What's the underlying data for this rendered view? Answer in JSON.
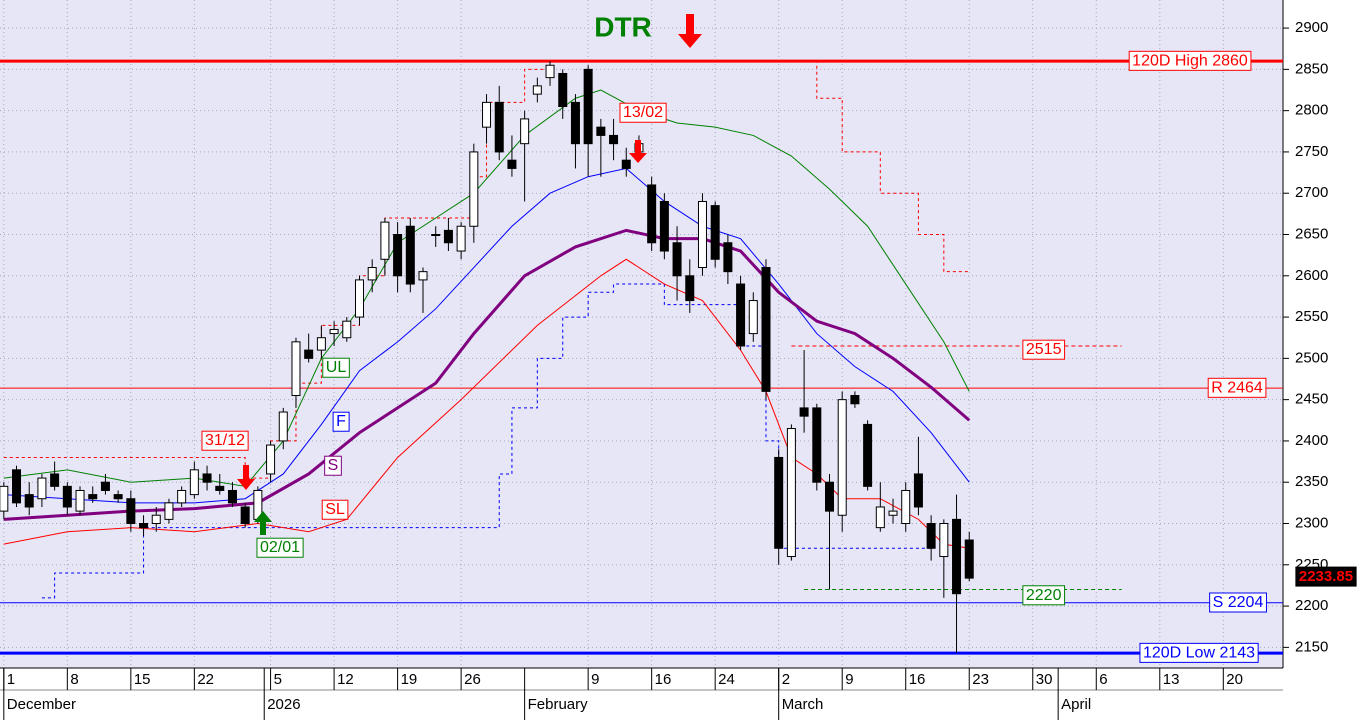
{
  "chart_data": {
    "type": "candlestick",
    "xlim": [
      -0.3,
      100.7
    ],
    "ylim": [
      2125,
      2934
    ],
    "yticks": [
      2150,
      2200,
      2250,
      2300,
      2350,
      2400,
      2450,
      2500,
      2550,
      2600,
      2650,
      2700,
      2750,
      2800,
      2850,
      2900
    ],
    "xticks": [
      {
        "value": 0,
        "label": "1"
      },
      {
        "value": 5,
        "label": "8"
      },
      {
        "value": 10,
        "label": "15"
      },
      {
        "value": 15,
        "label": "22"
      },
      {
        "value": 21,
        "label": "5"
      },
      {
        "value": 26,
        "label": "12"
      },
      {
        "value": 31,
        "label": "19"
      },
      {
        "value": 36,
        "label": "26"
      },
      {
        "value": 46,
        "label": "9"
      },
      {
        "value": 51,
        "label": "16"
      },
      {
        "value": 56,
        "label": "24"
      },
      {
        "value": 61,
        "label": "2"
      },
      {
        "value": 66,
        "label": "9"
      },
      {
        "value": 71,
        "label": "16"
      },
      {
        "value": 76,
        "label": "23"
      },
      {
        "value": 81,
        "label": "30"
      },
      {
        "value": 86,
        "label": "6"
      },
      {
        "value": 91,
        "label": "13"
      },
      {
        "value": 96,
        "label": "20"
      }
    ],
    "months": [
      {
        "value": 0,
        "label": "December"
      },
      {
        "value": 20.5,
        "label": "2026"
      },
      {
        "value": 41,
        "label": "February"
      },
      {
        "value": 61,
        "label": "March"
      },
      {
        "value": 83,
        "label": "April"
      }
    ],
    "grid": true,
    "open": [
      2315,
      2365,
      2335,
      2330,
      2360,
      2345,
      2315,
      2335,
      2350,
      2335,
      2330,
      2300,
      2300,
      2305,
      2325,
      2335,
      2360,
      2345,
      2340,
      2320,
      2305,
      2360,
      2400,
      2455,
      2510,
      2510,
      2530,
      2525,
      2550,
      2595,
      2620,
      2650,
      2660,
      2595,
      2650,
      2655,
      2630,
      2660,
      2780,
      2810,
      2740,
      2760,
      2820,
      2840,
      2845,
      2810,
      2850,
      2780,
      2770,
      2740,
      2750,
      2710,
      2690,
      2640,
      2600,
      2610,
      2685,
      2640,
      2590,
      2530,
      2610,
      2380,
      2260,
      2440,
      2440,
      2350,
      2310,
      2455,
      2420,
      2295,
      2310,
      2300,
      2360,
      2300,
      2260,
      2305,
      2280
    ],
    "high": [
      2350,
      2370,
      2350,
      2360,
      2375,
      2350,
      2345,
      2345,
      2360,
      2340,
      2340,
      2310,
      2320,
      2330,
      2345,
      2375,
      2370,
      2360,
      2350,
      2325,
      2345,
      2400,
      2440,
      2525,
      2530,
      2540,
      2545,
      2550,
      2600,
      2620,
      2670,
      2665,
      2670,
      2610,
      2660,
      2670,
      2665,
      2760,
      2820,
      2830,
      2770,
      2800,
      2840,
      2860,
      2850,
      2820,
      2855,
      2790,
      2790,
      2755,
      2770,
      2720,
      2700,
      2660,
      2620,
      2700,
      2690,
      2650,
      2600,
      2580,
      2620,
      2390,
      2420,
      2510,
      2445,
      2360,
      2460,
      2460,
      2425,
      2350,
      2330,
      2350,
      2405,
      2310,
      2305,
      2335,
      2290
    ],
    "low": [
      2305,
      2320,
      2310,
      2320,
      2340,
      2310,
      2310,
      2325,
      2335,
      2325,
      2290,
      2285,
      2290,
      2300,
      2320,
      2330,
      2340,
      2335,
      2320,
      2295,
      2300,
      2350,
      2390,
      2440,
      2495,
      2500,
      2515,
      2520,
      2540,
      2580,
      2600,
      2580,
      2580,
      2555,
      2635,
      2630,
      2620,
      2640,
      2760,
      2740,
      2720,
      2690,
      2810,
      2830,
      2790,
      2730,
      2720,
      2720,
      2740,
      2720,
      2745,
      2630,
      2620,
      2570,
      2555,
      2600,
      2610,
      2590,
      2510,
      2520,
      2450,
      2250,
      2255,
      2410,
      2340,
      2220,
      2290,
      2440,
      2340,
      2290,
      2300,
      2290,
      2310,
      2255,
      2210,
      2143,
      2230
    ],
    "close": [
      2345,
      2325,
      2320,
      2355,
      2345,
      2320,
      2340,
      2330,
      2340,
      2330,
      2300,
      2295,
      2310,
      2325,
      2340,
      2365,
      2350,
      2340,
      2325,
      2300,
      2340,
      2395,
      2435,
      2520,
      2500,
      2525,
      2535,
      2545,
      2595,
      2610,
      2665,
      2600,
      2590,
      2605,
      2650,
      2640,
      2660,
      2750,
      2810,
      2750,
      2730,
      2790,
      2830,
      2855,
      2805,
      2760,
      2760,
      2770,
      2760,
      2730,
      2760,
      2640,
      2630,
      2600,
      2570,
      2690,
      2620,
      2605,
      2515,
      2570,
      2460,
      2270,
      2415,
      2430,
      2350,
      2315,
      2450,
      2445,
      2345,
      2320,
      2315,
      2340,
      2320,
      2270,
      2300,
      2215,
      2233.85
    ],
    "series": [
      {
        "name": "UL",
        "color": "#008000",
        "width": 1,
        "x": [
          0,
          5,
          10,
          15,
          19,
          22,
          25,
          28,
          31,
          34,
          37,
          41,
          45,
          47,
          50,
          53,
          56,
          59,
          62,
          65,
          68,
          71,
          74,
          76
        ],
        "values": [
          2355,
          2365,
          2350,
          2355,
          2345,
          2400,
          2500,
          2560,
          2640,
          2670,
          2700,
          2770,
          2815,
          2825,
          2800,
          2785,
          2780,
          2770,
          2745,
          2705,
          2660,
          2590,
          2520,
          2460
        ]
      },
      {
        "name": "F",
        "color": "#0000ff",
        "width": 1,
        "x": [
          0,
          5,
          10,
          15,
          19,
          22,
          25,
          28,
          31,
          34,
          37,
          40,
          43,
          46,
          49,
          52,
          55,
          58,
          61,
          64,
          67,
          70,
          73,
          76
        ],
        "values": [
          2335,
          2330,
          2325,
          2325,
          2330,
          2360,
          2420,
          2485,
          2520,
          2560,
          2610,
          2660,
          2700,
          2720,
          2730,
          2690,
          2660,
          2645,
          2590,
          2530,
          2490,
          2460,
          2410,
          2350
        ]
      },
      {
        "name": "S",
        "color": "#800080",
        "width": 3,
        "x": [
          0,
          5,
          10,
          15,
          20,
          24,
          28,
          31,
          34,
          37,
          41,
          45,
          49,
          52,
          55,
          58,
          61,
          64,
          67,
          70,
          73,
          76
        ],
        "values": [
          2305,
          2310,
          2315,
          2318,
          2325,
          2360,
          2410,
          2440,
          2470,
          2530,
          2600,
          2635,
          2655,
          2645,
          2645,
          2630,
          2580,
          2545,
          2530,
          2500,
          2465,
          2425
        ]
      },
      {
        "name": "SL",
        "color": "#ff0000",
        "width": 1,
        "x": [
          0,
          5,
          10,
          15,
          20,
          24,
          27,
          31,
          36,
          42,
          47,
          49,
          52,
          55,
          58,
          60,
          62,
          64,
          66,
          69,
          72,
          74,
          76
        ],
        "values": [
          2275,
          2290,
          2295,
          2290,
          2300,
          2290,
          2305,
          2380,
          2450,
          2540,
          2600,
          2620,
          2590,
          2570,
          2510,
          2460,
          2380,
          2360,
          2330,
          2330,
          2305,
          2275,
          2270
        ]
      }
    ],
    "stops": [
      {
        "color": "#ff0000",
        "x": [
          0,
          19,
          21,
          23,
          25,
          28,
          30,
          37,
          38,
          41,
          43,
          45
        ],
        "values": [
          2380,
          2355,
          2400,
          2470,
          2540,
          2600,
          2670,
          2720,
          2810,
          2850,
          2860,
          2860
        ]
      },
      {
        "color": "#ff0000",
        "x": [
          62,
          64,
          66,
          69,
          72,
          74,
          76
        ],
        "values": [
          2860,
          2815,
          2750,
          2700,
          2650,
          2605,
          2605
        ]
      },
      {
        "color": "#0000ff",
        "x": [
          3,
          4,
          11,
          39,
          40,
          42,
          44,
          46,
          48,
          52,
          58,
          60,
          61,
          73
        ],
        "values": [
          2210,
          2240,
          2295,
          2360,
          2440,
          2500,
          2550,
          2580,
          2590,
          2565,
          2515,
          2400,
          2270,
          2270
        ]
      }
    ],
    "levels": [
      {
        "label": "120D High 2860",
        "value": 2860,
        "color": "#ff0000",
        "width": 3
      },
      {
        "label": "R 2464",
        "value": 2464,
        "color": "#ff0000",
        "width": 1
      },
      {
        "label": "S 2204",
        "value": 2204,
        "color": "#0000ff",
        "width": 1
      },
      {
        "label": "120D Low 2143",
        "value": 2143,
        "color": "#0000ff",
        "width": 3
      }
    ],
    "short_levels": [
      {
        "value": 2515,
        "color": "#ff0000",
        "x": [
          62,
          88
        ]
      },
      {
        "value": 2220,
        "color": "#008000",
        "x": [
          63,
          88
        ]
      }
    ],
    "annotations": [
      {
        "text": "DTR"
      },
      {
        "text": "13/02"
      },
      {
        "text": "31/12"
      },
      {
        "text": "02/01"
      }
    ]
  }
}
